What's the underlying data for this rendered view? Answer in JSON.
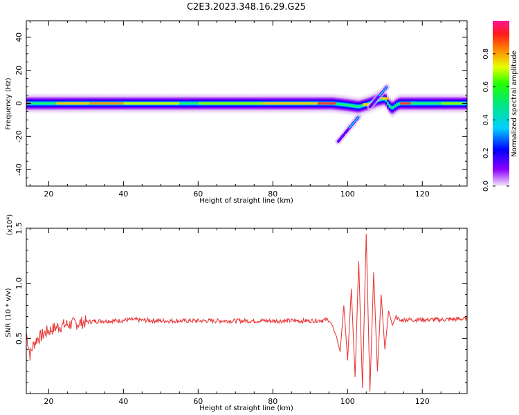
{
  "title": "C2E3.2023.348.16.29.G25",
  "chart_data": [
    {
      "type": "heatmap",
      "xlabel": "Height of straight line (km)",
      "ylabel": "Frequency (Hz)",
      "xlim": [
        14,
        132
      ],
      "ylim": [
        -50,
        50
      ],
      "xticks": [
        20,
        40,
        60,
        80,
        100,
        120
      ],
      "yticks": [
        -40,
        -20,
        0,
        20,
        40
      ],
      "colorbar": {
        "label": "Normalized spectral amplitude",
        "range": [
          0,
          1
        ],
        "ticks": [
          0.0,
          0.2,
          0.4,
          0.6,
          0.8
        ],
        "tick_labels": [
          "0.0",
          "0.2",
          "0.4",
          "0.6",
          "0.8"
        ]
      },
      "ridge_center_hz": [
        [
          14,
          0
        ],
        [
          96,
          0
        ],
        [
          100,
          -1
        ],
        [
          103,
          -2
        ],
        [
          106,
          0
        ],
        [
          108,
          2
        ],
        [
          110,
          3
        ],
        [
          111,
          -1
        ],
        [
          112,
          -3
        ],
        [
          113,
          -1
        ],
        [
          114,
          0
        ],
        [
          132,
          0
        ]
      ],
      "ridge_halfwidth_hz": 3,
      "streaks": [
        {
          "x": [
            97.5,
            103
          ],
          "y": [
            -23,
            -8
          ]
        },
        {
          "x": [
            106,
            110.5
          ],
          "y": [
            -2,
            10
          ]
        }
      ],
      "grid": false
    },
    {
      "type": "line",
      "xlabel": "Height of straight line (km)",
      "ylabel": "SNR (10 * v/v)",
      "multiplier": "(x10⁴)",
      "xlim": [
        14,
        132
      ],
      "ylim": [
        0,
        1.5
      ],
      "xticks": [
        20,
        40,
        60,
        80,
        100,
        120
      ],
      "yticks": [
        0.5,
        1.0,
        1.5
      ],
      "ytick_labels": [
        "0.5",
        "1.0",
        "1.5"
      ],
      "series": [
        {
          "color": "#e83a3a",
          "x": [
            14,
            15,
            16,
            17,
            18,
            19,
            20,
            22,
            24,
            26,
            28,
            30,
            34,
            38,
            42,
            50,
            60,
            70,
            80,
            90,
            95,
            96,
            97,
            98,
            99,
            100,
            101,
            102,
            103,
            104,
            105,
            106,
            107,
            108,
            109,
            110,
            111,
            112,
            113,
            114,
            115,
            120,
            125,
            132
          ],
          "y": [
            0.55,
            0.35,
            0.45,
            0.5,
            0.52,
            0.55,
            0.57,
            0.6,
            0.62,
            0.63,
            0.64,
            0.65,
            0.66,
            0.66,
            0.67,
            0.66,
            0.66,
            0.66,
            0.66,
            0.66,
            0.67,
            0.6,
            0.52,
            0.38,
            0.8,
            0.3,
            0.95,
            0.15,
            1.2,
            0.05,
            1.45,
            0.02,
            1.1,
            0.2,
            0.9,
            0.4,
            0.75,
            0.62,
            0.7,
            0.66,
            0.67,
            0.67,
            0.67,
            0.68
          ]
        }
      ],
      "grid": false
    }
  ]
}
